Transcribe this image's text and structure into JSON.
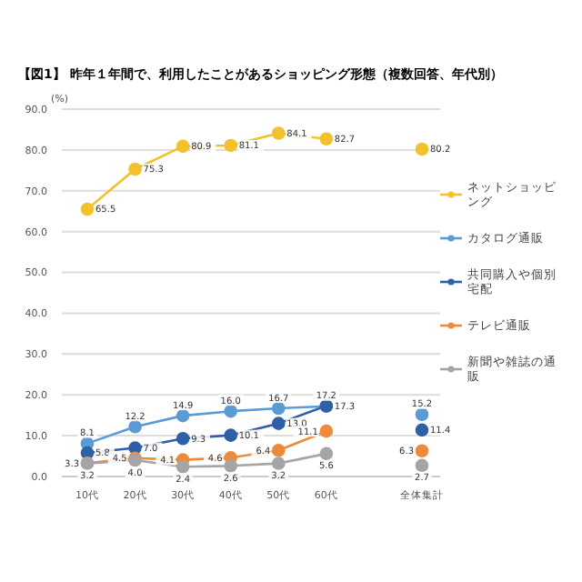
{
  "chart_data": {
    "type": "line",
    "title": "【図1】 昨年１年間で、利用したことがあるショッピング形態（複数回答、年代別）",
    "ylabel": "(%)",
    "categories": [
      "10代",
      "20代",
      "30代",
      "40代",
      "50代",
      "60代",
      null,
      "全体集計"
    ],
    "series": [
      {
        "name": "ネットショッピング",
        "color": "#f2c12e",
        "values": [
          65.5,
          75.3,
          80.9,
          81.1,
          84.1,
          82.7,
          null,
          80.2
        ],
        "value_labels": [
          "65.5",
          "75.3",
          "80.9",
          "81.1",
          "84.1",
          "82.7",
          null,
          "80.2"
        ]
      },
      {
        "name": "カタログ通販",
        "color": "#5b9bd5",
        "values": [
          8.1,
          12.2,
          14.9,
          16.0,
          16.7,
          17.2,
          null,
          15.2
        ],
        "value_labels": [
          "8.1",
          "12.2",
          "14.9",
          "16.0",
          "16.7",
          "17.2",
          null,
          "15.2"
        ]
      },
      {
        "name": "共同購入や個別宅配",
        "color": "#2f5fa7",
        "values": [
          5.8,
          7.0,
          9.3,
          10.1,
          13.0,
          17.3,
          null,
          11.4
        ],
        "value_labels": [
          "5.8",
          "7.0",
          "9.3",
          "10.1",
          "13.0",
          "17.3",
          null,
          "11.4"
        ]
      },
      {
        "name": "テレビ通販",
        "color": "#ed8b3a",
        "values": [
          3.3,
          4.5,
          4.1,
          4.6,
          6.4,
          11.1,
          null,
          6.3
        ],
        "value_labels": [
          "3.3",
          "4.5",
          "4.1",
          "4.6",
          "6.4",
          "11.1",
          null,
          "6.3"
        ]
      },
      {
        "name": "新聞や雑誌の通販",
        "color": "#a5a5a5",
        "values": [
          3.2,
          4.0,
          2.4,
          2.6,
          3.2,
          5.6,
          null,
          2.7
        ],
        "value_labels": [
          "3.2",
          "4.0",
          "2.4",
          "2.6",
          "3.2",
          "5.6",
          null,
          "2.7"
        ]
      }
    ],
    "ylim": [
      0,
      90
    ],
    "yticks": [
      {
        "value": 0,
        "label": "0.0"
      },
      {
        "value": 10,
        "label": "10.0"
      },
      {
        "value": 20,
        "label": "20.0"
      },
      {
        "value": 30,
        "label": "30.0"
      },
      {
        "value": 40,
        "label": "40.0"
      },
      {
        "value": 50,
        "label": "50.0"
      },
      {
        "value": 60,
        "label": "60.0"
      },
      {
        "value": 70,
        "label": "70.0"
      },
      {
        "value": 80,
        "label": "80.0"
      },
      {
        "value": 90,
        "label": "90.0"
      }
    ],
    "grid": "y",
    "legend": "right",
    "marker": "circle",
    "line_style": "solid"
  }
}
